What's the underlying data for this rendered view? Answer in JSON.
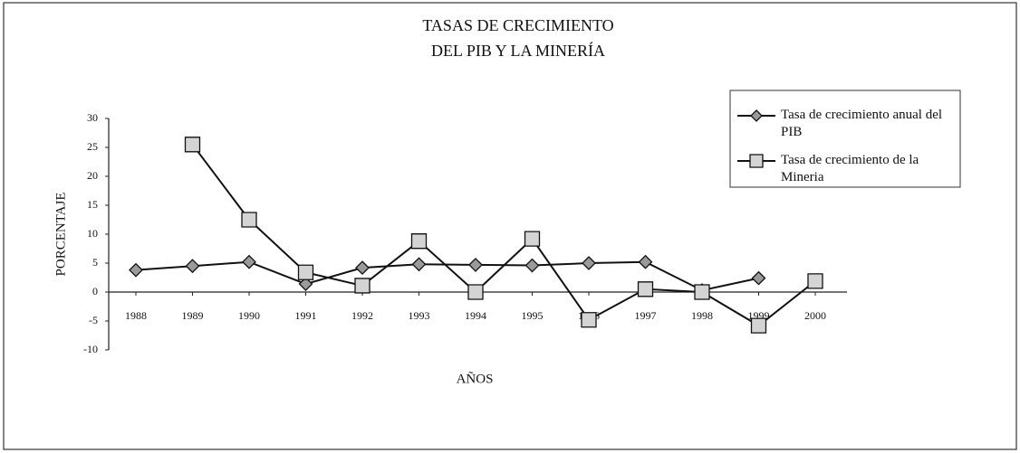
{
  "chart_data": {
    "type": "line",
    "title": [
      "TASAS DE CRECIMIENTO",
      "DEL PIB Y LA MINERÍA"
    ],
    "x_label": "AÑOS",
    "y_label": "PORCENTAJE",
    "categories": [
      "1988",
      "1989",
      "1990",
      "1991",
      "1992",
      "1993",
      "1994",
      "1995",
      "1996",
      "1997",
      "1998",
      "1999",
      "2000"
    ],
    "series": [
      {
        "name": "Tasa de crecimiento anual del PIB",
        "color": "#111111",
        "marker": "diamond",
        "marker_fill": "#9a9a9a",
        "values": [
          3.8,
          4.5,
          5.2,
          1.4,
          4.2,
          4.8,
          4.7,
          4.6,
          5.0,
          5.2,
          0.3,
          2.4,
          null
        ]
      },
      {
        "name": "Tasa de crecimiento de la Mineria",
        "color": "#111111",
        "marker": "square",
        "marker_fill": "#d4d4d4",
        "values": [
          null,
          25.5,
          12.5,
          3.4,
          1.1,
          8.8,
          0,
          9.2,
          -4.8,
          0.5,
          0,
          -5.8,
          1.9
        ]
      }
    ],
    "ylim": [
      -10,
      30
    ],
    "yticks": [
      -10,
      -5,
      0,
      5,
      10,
      15,
      20,
      25,
      30
    ],
    "legend": "upper-right"
  }
}
